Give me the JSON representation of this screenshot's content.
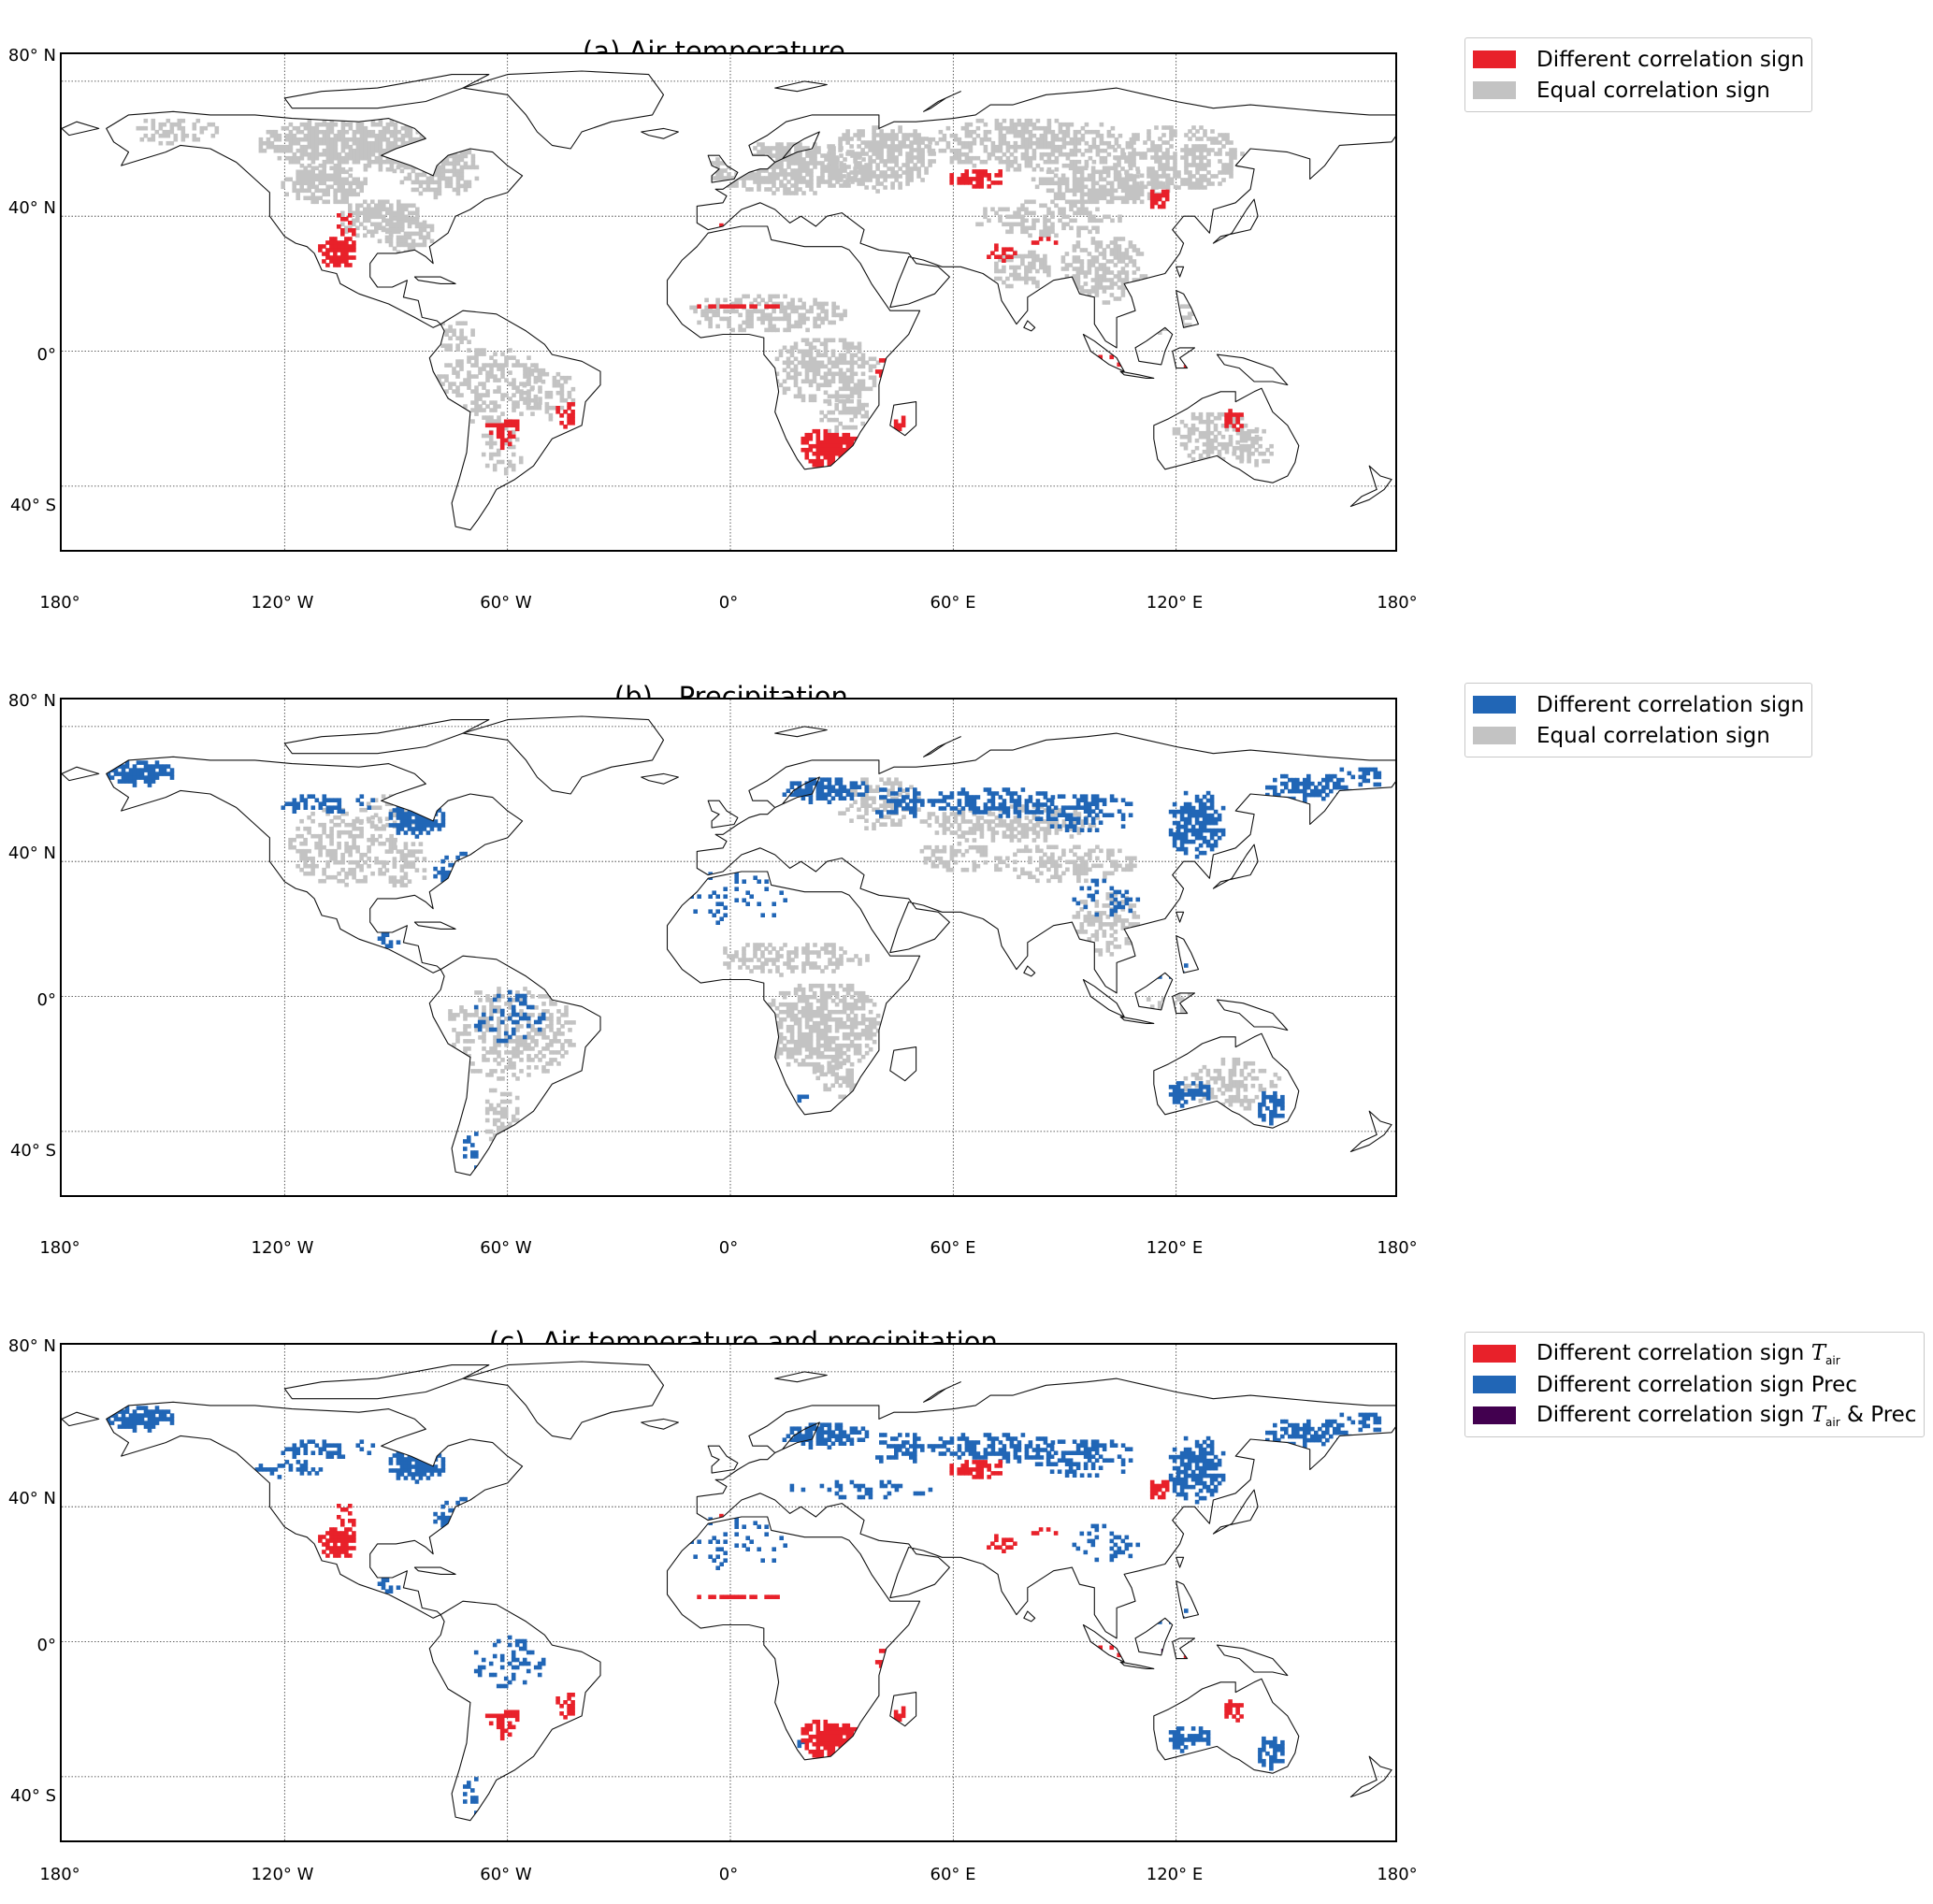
{
  "colors": {
    "red": "#e8212a",
    "blue": "#2166b6",
    "gray": "#c3c3c3",
    "purple": "#42004f",
    "coast": "#111111"
  },
  "axes": {
    "lat_ticks": [
      "80° N",
      "40° N",
      "0°",
      "40° S"
    ],
    "lon_ticks": [
      "180°",
      "120° W",
      "60° W",
      "0°",
      "60° E",
      "120° E",
      "180°"
    ]
  },
  "panels": [
    {
      "title_letter": "(a)",
      "title_text": "Air temperature",
      "legend": [
        {
          "label": "Different correlation sign",
          "color": "red"
        },
        {
          "label": "Equal correlation sign",
          "color": "gray"
        }
      ]
    },
    {
      "title_letter": "(b)",
      "title_text": "Precipitation",
      "legend": [
        {
          "label": "Different correlation sign",
          "color": "blue"
        },
        {
          "label": "Equal correlation sign",
          "color": "gray"
        }
      ]
    },
    {
      "title_letter": "(c)",
      "title_text": "Air temperature and precipitation",
      "legend": [
        {
          "label_main": "Different correlation sign ",
          "label_var": "T",
          "label_sub": "air",
          "label_tail": "",
          "color": "red"
        },
        {
          "label_main": "Different correlation sign Prec",
          "label_var": "",
          "label_sub": "",
          "label_tail": "",
          "color": "blue"
        },
        {
          "label_main": "Different correlation sign ",
          "label_var": "T",
          "label_sub": "air",
          "label_tail": " & Prec",
          "color": "purple"
        }
      ]
    }
  ]
}
